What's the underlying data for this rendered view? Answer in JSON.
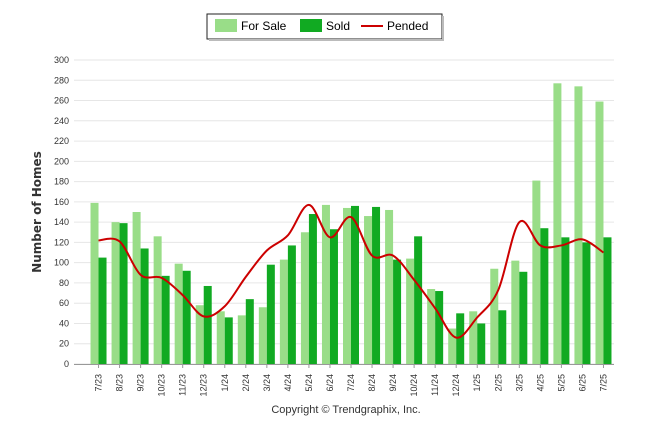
{
  "chart_data": {
    "type": "bar",
    "categories": [
      "7/23",
      "8/23",
      "9/23",
      "10/23",
      "11/23",
      "12/23",
      "1/24",
      "2/24",
      "3/24",
      "4/24",
      "5/24",
      "6/24",
      "7/24",
      "8/24",
      "9/24",
      "10/24",
      "11/24",
      "12/24",
      "1/25",
      "2/25",
      "3/25",
      "4/25",
      "5/25",
      "6/25",
      "7/25"
    ],
    "series": [
      {
        "name": "For Sale",
        "type": "bar",
        "color": "#99dd88",
        "values": [
          159,
          140,
          150,
          126,
          99,
          58,
          52,
          48,
          56,
          103,
          130,
          157,
          154,
          146,
          152,
          104,
          74,
          35,
          52,
          94,
          102,
          181,
          277,
          274,
          259
        ]
      },
      {
        "name": "Sold",
        "type": "bar",
        "color": "#11aa22",
        "values": [
          105,
          139,
          114,
          87,
          92,
          77,
          46,
          64,
          98,
          117,
          148,
          133,
          156,
          155,
          103,
          126,
          72,
          50,
          40,
          53,
          91,
          134,
          125,
          120,
          125
        ]
      },
      {
        "name": "Pended",
        "type": "line",
        "color": "#cc0000",
        "values": [
          122,
          121,
          88,
          85,
          68,
          47,
          57,
          86,
          112,
          127,
          157,
          125,
          145,
          107,
          107,
          83,
          55,
          26,
          46,
          73,
          140,
          117,
          117,
          123,
          110
        ]
      }
    ],
    "ylabel": "Number of Homes",
    "xlabel": "",
    "ylim": [
      0,
      300
    ],
    "yticks": [
      0,
      20,
      40,
      60,
      80,
      100,
      120,
      140,
      160,
      180,
      200,
      220,
      240,
      260,
      280,
      300
    ],
    "grid": true,
    "legend_position": "top-center"
  },
  "credit": "Copyright © Trendgraphix, Inc."
}
